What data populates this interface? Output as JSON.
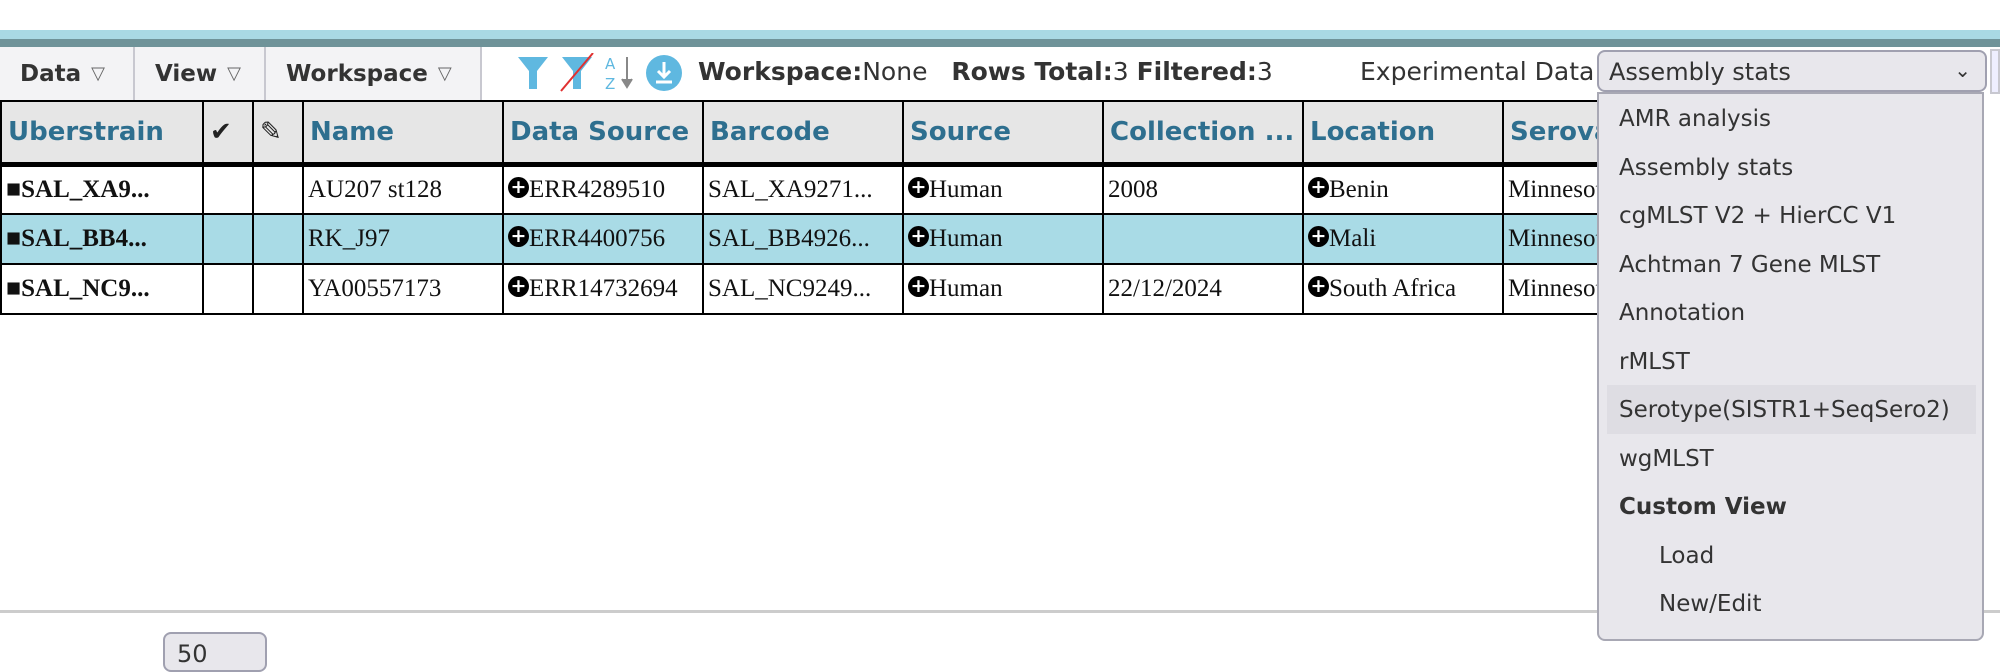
{
  "toolbar": {
    "menus": [
      {
        "label": "Data"
      },
      {
        "label": "View"
      },
      {
        "label": "Workspace"
      }
    ],
    "icons": [
      "filter-icon",
      "clear-filter-icon",
      "sort-az-icon",
      "download-icon"
    ],
    "workspace_label": "Workspace:",
    "workspace_value": "None",
    "rows_total_label": "Rows Total:",
    "rows_total": "3",
    "filtered_label": "Filtered:",
    "filtered": "3",
    "experimental_label": "Experimental Data",
    "experimental_selected": "Assembly stats"
  },
  "dropdown": {
    "items": [
      "AMR analysis",
      "Assembly stats",
      "cgMLST V2 + HierCC V1",
      "Achtman 7 Gene MLST",
      "Annotation",
      "rMLST",
      "Serotype(SISTR1+SeqSero2)",
      "wgMLST"
    ],
    "custom_heading": "Custom View",
    "custom_items": [
      "Load",
      "New/Edit"
    ],
    "highlighted": "Serotype(SISTR1+SeqSero2)"
  },
  "table": {
    "headers": [
      "Uberstrain",
      "✔",
      "✎",
      "Name",
      "Data Source",
      "Barcode",
      "Source",
      "Collection ...",
      "Location",
      "Serovar"
    ],
    "rows": [
      {
        "uberstrain": "SAL_XA9...",
        "name": "AU207 st128",
        "data_source": "ERR4289510",
        "barcode": "SAL_XA9271...",
        "source": "Human",
        "collection": "2008",
        "location": "Benin",
        "serovar": "Minnesota",
        "selected": false
      },
      {
        "uberstrain": "SAL_BB4...",
        "name": "RK_J97",
        "data_source": "ERR4400756",
        "barcode": "SAL_BB4926...",
        "source": "Human",
        "collection": "",
        "location": "Mali",
        "serovar": "Minnesota",
        "selected": true
      },
      {
        "uberstrain": "SAL_NC9...",
        "name": "YA00557173",
        "data_source": "ERR14732694",
        "barcode": "SAL_NC9249...",
        "source": "Human",
        "collection": "22/12/2024",
        "location": "South Africa",
        "serovar": "Minnesota",
        "selected": false
      }
    ]
  },
  "pagination": {
    "per_page": "50"
  },
  "colors": {
    "header_text": "#2e6f8f",
    "selected_row": "#a9dbe6",
    "band_dark": "#6f9399",
    "band_light": "#a9d9e4"
  }
}
